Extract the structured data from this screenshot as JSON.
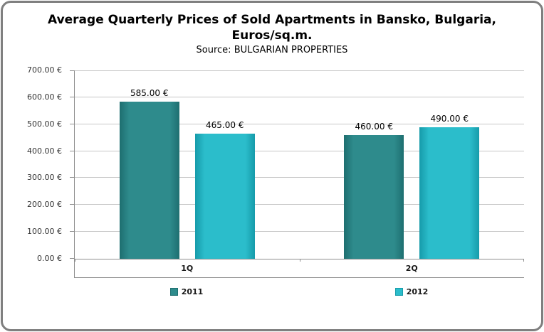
{
  "chart_data": {
    "type": "bar",
    "title": "Average Quarterly Prices of Sold Apartments in Bansko, Bulgaria, Euros/sq.m.",
    "title_lines": [
      "Average Quarterly Prices of Sold Apartments in Bansko, Bulgaria,",
      "Euros/sq.m."
    ],
    "subtitle": "Source: BULGARIAN PROPERTIES",
    "categories": [
      "1Q",
      "2Q"
    ],
    "series": [
      {
        "name": "2011",
        "values": [
          585,
          460
        ],
        "labels": [
          "585.00 €",
          "460.00 €"
        ],
        "color": "#2E8B8C",
        "edge_color": "#1E6F70"
      },
      {
        "name": "2012",
        "values": [
          465,
          490
        ],
        "labels": [
          "465.00 €",
          "490.00 €"
        ],
        "color": "#2BBDCB",
        "edge_color": "#169BAA"
      }
    ],
    "ylim": [
      0,
      700
    ],
    "ytick_values": [
      0,
      100,
      200,
      300,
      400,
      500,
      600,
      700
    ],
    "ytick_labels": [
      "0.00 €",
      "100.00 €",
      "200.00 €",
      "300.00 €",
      "400.00 €",
      "500.00 €",
      "600.00 €",
      "700.00 €"
    ],
    "grid": true,
    "legend_position": "bottom",
    "currency_symbol": "€"
  }
}
